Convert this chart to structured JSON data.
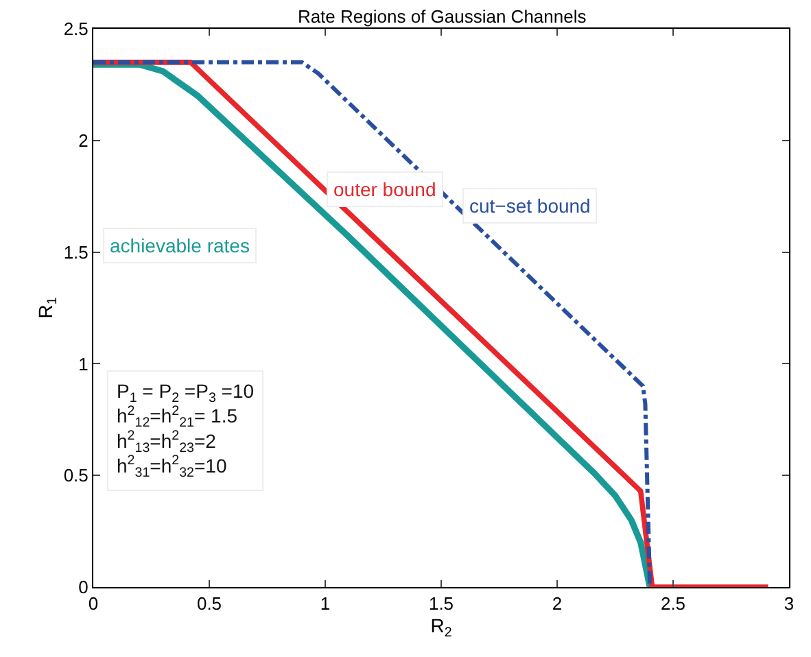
{
  "chart_data": {
    "type": "line",
    "title": "Rate Regions of Gaussian Channels",
    "xlabel": "R$_{2}$",
    "ylabel": "R$_{1}$",
    "xlim": [
      0,
      3
    ],
    "xticks": [
      0,
      0.5,
      1,
      1.5,
      2,
      2.5,
      3
    ],
    "ylim": [
      0,
      2.5
    ],
    "yticks": [
      0,
      0.5,
      1,
      1.5,
      2,
      2.5
    ],
    "grid": false,
    "legend": false,
    "marker": "none",
    "series": [
      {
        "name": "achievable rates",
        "color": "#1a9a96",
        "line_style": "solid",
        "x": [
          0,
          0.2,
          0.3,
          0.45,
          1.08,
          2.16,
          2.25,
          2.32,
          2.36,
          2.4
        ],
        "values": [
          2.34,
          2.34,
          2.31,
          2.2,
          1.59,
          0.51,
          0.41,
          0.3,
          0.2,
          0
        ]
      },
      {
        "name": "outer bound",
        "color": "#e8262b",
        "line_style": "solid",
        "x": [
          0,
          0.42,
          0.47,
          2.36,
          2.41,
          2.91
        ],
        "values": [
          2.35,
          2.35,
          2.3,
          0.43,
          0,
          0
        ]
      },
      {
        "name": "cut−set bound",
        "color": "#2a4ea0",
        "line_style": "dashed",
        "x": [
          0,
          0.9,
          0.97,
          2.37,
          2.38,
          2.4
        ],
        "values": [
          2.35,
          2.35,
          2.3,
          0.9,
          0.82,
          0
        ]
      }
    ],
    "annotations": [
      "P$_{1}$ = P$_{2}$ =P$_{3}$ =10\nh$^{2}$$_{12}$=h$^{2}$$_{21}$= 1.5\nh$^{2}$$_{13}$=h$^{2}$$_{23}$=2\nh$^{2}$$_{31}$=h$^{2}$$_{32}$=10"
    ]
  }
}
